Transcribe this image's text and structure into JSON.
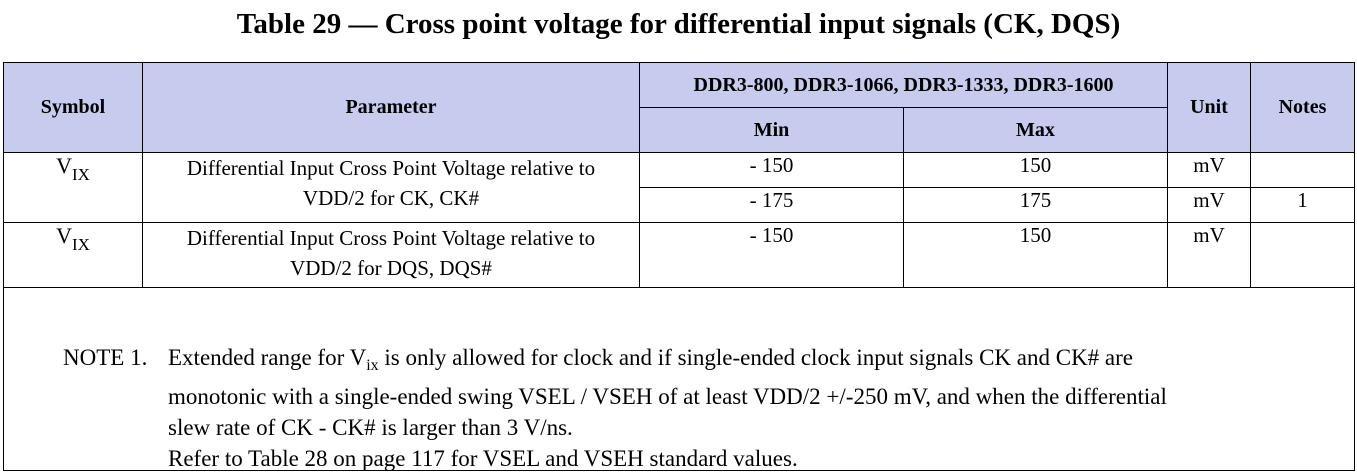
{
  "title": "Table 29 — Cross point voltage for differential input signals (CK, DQS)",
  "header": {
    "symbol": "Symbol",
    "parameter": "Parameter",
    "speed_grades": "DDR3-800, DDR3-1066, DDR3-1333, DDR3-1600",
    "min": "Min",
    "max": "Max",
    "unit": "Unit",
    "notes": "Notes"
  },
  "rows": [
    {
      "symbol_main": "V",
      "symbol_sub": "IX",
      "parameter_line1": "Differential Input Cross Point Voltage relative to",
      "parameter_line2": "VDD/2 for CK, CK#",
      "entries": [
        {
          "min": "- 150",
          "max": "150",
          "unit": "mV",
          "notes": ""
        },
        {
          "min": "- 175",
          "max": "175",
          "unit": "mV",
          "notes": "1"
        }
      ]
    },
    {
      "symbol_main": "V",
      "symbol_sub": "IX",
      "parameter_line1": "Differential Input Cross Point Voltage relative to",
      "parameter_line2": "VDD/2 for DQS, DQS#",
      "entries": [
        {
          "min": "- 150",
          "max": "150",
          "unit": "mV",
          "notes": ""
        }
      ]
    }
  ],
  "note": {
    "label": "NOTE 1.",
    "line1_pre": "Extended range for V",
    "line1_sub": "ix",
    "line1_post": " is only allowed for clock and if single-ended clock input signals CK and CK# are",
    "line2": "monotonic with a single-ended swing VSEL / VSEH of at least VDD/2 +/-250 mV, and when the differential",
    "line3": "slew rate of CK - CK# is larger than 3 V/ns.",
    "line4": "Refer to Table 28 on page 117 for VSEL and VSEH standard values."
  }
}
